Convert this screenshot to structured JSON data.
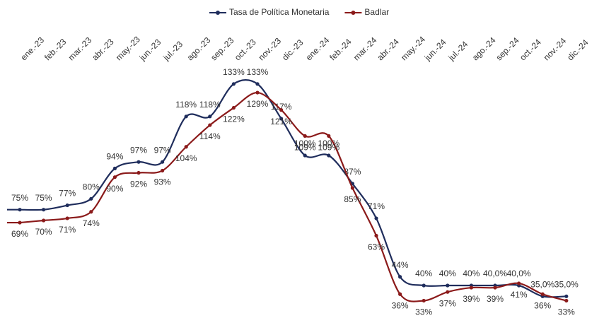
{
  "chart_data": {
    "type": "line",
    "categories": [
      "ene.-23",
      "feb.-23",
      "mar.-23",
      "abr.-23",
      "may.-23",
      "jun.-23",
      "jul.-23",
      "ago.-23",
      "sep.-23",
      "oct.-23",
      "nov.-23",
      "dic.-23",
      "ene.-24",
      "feb.-24",
      "mar.-24",
      "abr.-24",
      "may.-24",
      "jun.-24",
      "jul.-24",
      "ago.-24",
      "sep.-24",
      "oct.-24",
      "nov.-24",
      "dic.-24"
    ],
    "series": [
      {
        "name": "Tasa de Política Monetaria",
        "color": "#1f2d5c",
        "values": [
          75,
          75,
          77,
          80,
          94,
          97,
          97,
          118,
          118,
          133,
          133,
          117,
          100,
          100,
          87,
          71,
          44,
          40,
          40,
          40,
          40,
          40,
          35,
          35
        ],
        "value_labels": [
          "75%",
          "75%",
          "77%",
          "80%",
          "94%",
          "97%",
          "97%",
          "118%",
          "118%",
          "133%",
          "133%",
          "117%",
          "100%",
          "100%",
          "87%",
          "71%",
          "44%",
          "40%",
          "40%",
          "40%",
          "40,0%",
          "40,0%",
          "35,0%",
          "35,0%"
        ]
      },
      {
        "name": "Badlar",
        "color": "#8b1a1a",
        "values": [
          69,
          70,
          71,
          74,
          90,
          92,
          93,
          104,
          114,
          122,
          129,
          121,
          109,
          109,
          85,
          63,
          36,
          33,
          37,
          39,
          39,
          41,
          36,
          33
        ],
        "value_labels": [
          "69%",
          "70%",
          "71%",
          "74%",
          "90%",
          "92%",
          "93%",
          "104%",
          "114%",
          "122%",
          "129%",
          "121%",
          "109%",
          "109%",
          "85%",
          "63%",
          "36%",
          "33%",
          "37%",
          "39%",
          "39%",
          "41%",
          "36%",
          "33%"
        ]
      }
    ],
    "ylim": [
      25,
      145
    ]
  }
}
